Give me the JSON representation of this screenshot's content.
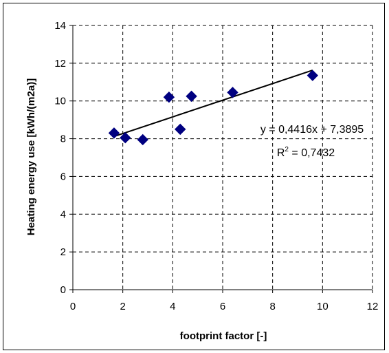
{
  "chart_data": {
    "type": "scatter",
    "title": "",
    "xlabel": "footprint factor [-]",
    "ylabel": "Heating energy use [kWh/(m2a)]",
    "xlim": [
      0,
      12
    ],
    "ylim": [
      0,
      14
    ],
    "xticks": [
      0,
      2,
      4,
      6,
      8,
      10,
      12
    ],
    "yticks": [
      0,
      2,
      4,
      6,
      8,
      10,
      12,
      14
    ],
    "grid": true,
    "series": [
      {
        "points": [
          {
            "x": 1.65,
            "y": 8.3
          },
          {
            "x": 2.1,
            "y": 8.05
          },
          {
            "x": 2.8,
            "y": 7.95
          },
          {
            "x": 3.85,
            "y": 10.2
          },
          {
            "x": 4.3,
            "y": 8.5
          },
          {
            "x": 4.75,
            "y": 10.25
          },
          {
            "x": 6.4,
            "y": 10.45
          },
          {
            "x": 9.6,
            "y": 11.35
          }
        ],
        "color": "#000080",
        "marker": "diamond"
      }
    ],
    "trendline": {
      "slope": 0.4416,
      "intercept": 7.3895,
      "x_range": [
        1.65,
        9.6
      ],
      "equation_label": "y = 0,4416x + 7,3895",
      "r2_prefix": "R",
      "r2_exponent": "2",
      "r2_suffix": " = 0,7432"
    }
  }
}
